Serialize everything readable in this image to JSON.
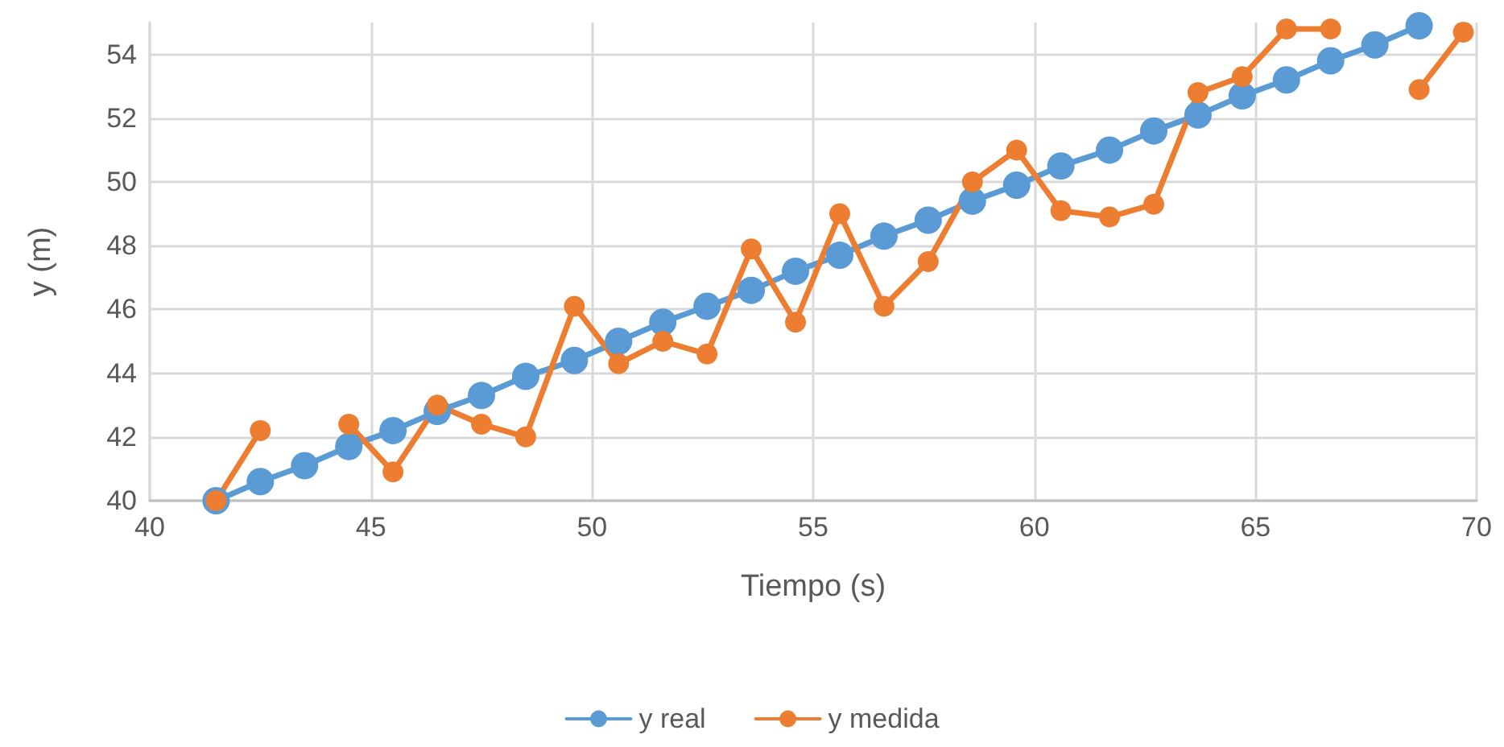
{
  "chart_data": {
    "type": "line",
    "xlabel": "Tiempo (s)",
    "ylabel": "y (m)",
    "xlim": [
      40,
      70
    ],
    "xticks": [
      40,
      45,
      50,
      55,
      60,
      65,
      70
    ],
    "ylim": [
      40,
      55
    ],
    "yticks": [
      40,
      42,
      44,
      46,
      48,
      50,
      52,
      54
    ],
    "grid": true,
    "legend": "bottom",
    "marker": "circle",
    "line_style": "solid",
    "series": [
      {
        "name": "y real",
        "color": "#5b9bd5",
        "x": [
          41.5,
          42.5,
          43.5,
          44.5,
          45.5,
          46.5,
          47.5,
          48.5,
          49.6,
          50.6,
          51.6,
          52.6,
          53.6,
          54.6,
          55.6,
          56.6,
          57.6,
          58.6,
          59.6,
          60.6,
          61.7,
          62.7,
          63.7,
          64.7,
          65.7,
          66.7,
          67.7,
          68.7
        ],
        "values": [
          40.0,
          40.6,
          41.1,
          41.7,
          42.2,
          42.8,
          43.3,
          43.9,
          44.4,
          45.0,
          45.6,
          46.1,
          46.6,
          47.2,
          47.7,
          48.3,
          48.8,
          49.4,
          49.9,
          50.5,
          51.0,
          51.6,
          52.1,
          52.7,
          53.2,
          53.8,
          54.3,
          54.9
        ]
      },
      {
        "name": "y medida",
        "color": "#ed7d31",
        "x": [
          41.5,
          42.5,
          43.5,
          44.5,
          45.5,
          46.5,
          47.5,
          48.5,
          49.6,
          50.6,
          51.6,
          52.6,
          53.6,
          54.6,
          55.6,
          56.6,
          57.6,
          58.6,
          59.6,
          60.6,
          61.7,
          62.7,
          63.7,
          64.7,
          65.7,
          66.7,
          67.7,
          68.7,
          69.7
        ],
        "values": [
          40.0,
          42.2,
          null,
          42.4,
          40.9,
          43.0,
          42.4,
          42.0,
          46.1,
          44.3,
          45.0,
          44.6,
          47.9,
          45.6,
          49.0,
          46.1,
          47.5,
          50.0,
          51.0,
          49.1,
          48.9,
          49.3,
          52.8,
          53.3,
          54.8,
          54.8,
          null,
          52.9,
          54.7
        ]
      }
    ]
  }
}
